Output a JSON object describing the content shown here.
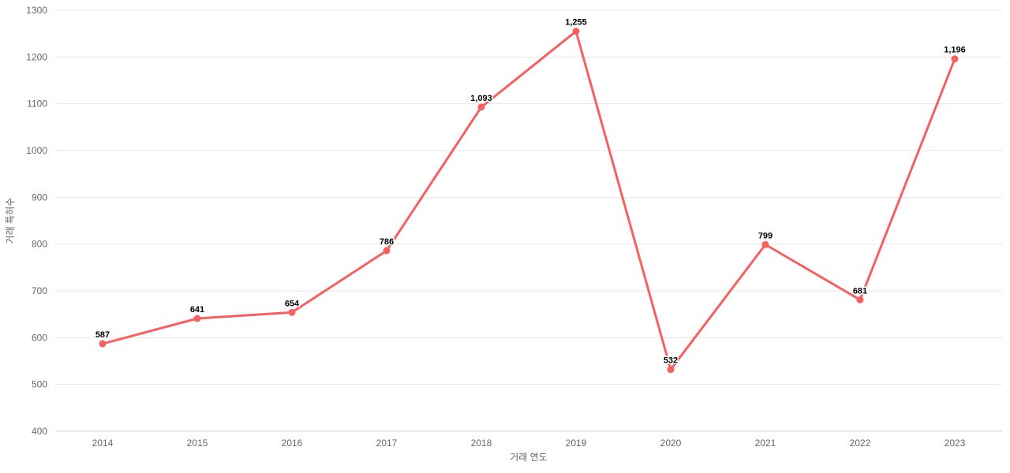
{
  "chart_data": {
    "type": "line",
    "title": "",
    "categories": [
      "2014",
      "2015",
      "2016",
      "2017",
      "2018",
      "2019",
      "2020",
      "2021",
      "2022",
      "2023"
    ],
    "series": [
      {
        "name": "거래 특허수",
        "values": [
          587,
          641,
          654,
          786,
          1093,
          1255,
          532,
          799,
          681,
          1196
        ]
      }
    ],
    "data_labels": [
      "587",
      "641",
      "654",
      "786",
      "1,093",
      "1,255",
      "532",
      "799",
      "681",
      "1,196"
    ],
    "xlabel": "거래 연도",
    "ylabel": "거래 특허수",
    "ylim": [
      400,
      1300
    ],
    "ytick_step": 100,
    "ytick_labels": [
      "400",
      "500",
      "600",
      "700",
      "800",
      "900",
      "1000",
      "1100",
      "1200",
      "1300"
    ],
    "grid": true,
    "legend": false,
    "colors": {
      "line": "#f66060",
      "marker": "#f66060",
      "gridline": "#e6e6e6",
      "axis_line": "#ccd6eb",
      "tick_text": "#666666",
      "data_label": "#000000",
      "background": "#ffffff"
    }
  }
}
